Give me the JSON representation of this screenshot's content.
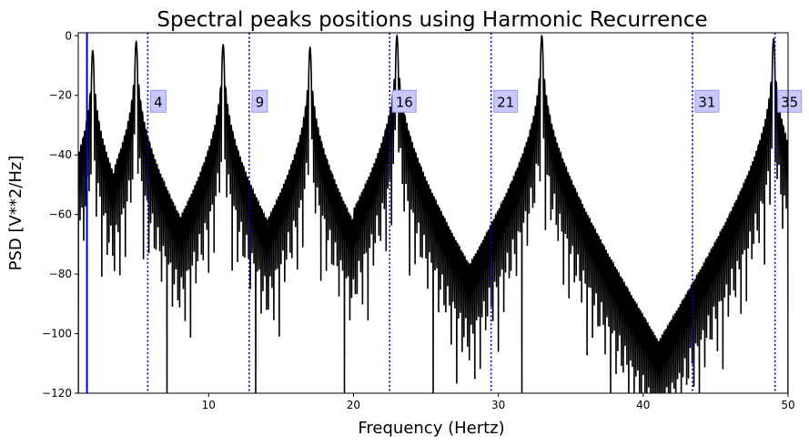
{
  "chart_data": {
    "type": "line",
    "title": "Spectral peaks positions using Harmonic Recurrence",
    "xlabel": "Frequency (Hertz)",
    "ylabel": "PSD [V**2/Hz]",
    "xlim": [
      1.0,
      50.0
    ],
    "ylim": [
      -120,
      1
    ],
    "xticks": [
      10,
      20,
      30,
      40,
      50
    ],
    "yticks": [
      -120,
      -100,
      -80,
      -60,
      -40,
      -20,
      0
    ],
    "grid": false,
    "series": [
      {
        "style": "line",
        "color": "#000000",
        "peak_freqs": [
          2,
          5,
          11,
          17,
          23,
          33,
          49
        ],
        "peak_levels": [
          -5,
          -2,
          -3,
          -4,
          0,
          0,
          -1
        ],
        "floor_levels": [
          -120,
          -120,
          -120,
          -120,
          -120,
          -120,
          -120
        ],
        "lobe_levels": [
          -5,
          -2,
          -3,
          -4,
          0,
          0,
          -1
        ]
      }
    ],
    "solid_marker": {
      "x": 1.6,
      "color": "#0000cc"
    },
    "dotted_markers": {
      "color": "#0000cc",
      "x": [
        5.8,
        12.8,
        22.5,
        29.5,
        43.4,
        49.1
      ],
      "labels": [
        "4",
        "9",
        "16",
        "21",
        "31",
        "35"
      ],
      "label_y": -22,
      "label_bg": "#c8c8ff",
      "label_border": "#9a9af0"
    }
  }
}
